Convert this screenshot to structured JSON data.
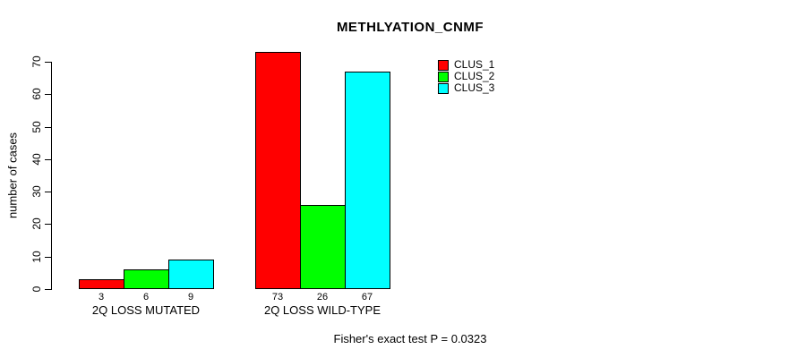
{
  "title": "METHLYATION_CNMF",
  "footer": "Fisher's exact test P = 0.0323",
  "y_axis": {
    "label": "number of cases",
    "ticks": [
      0,
      10,
      20,
      30,
      40,
      50,
      60,
      70
    ]
  },
  "chart_data": {
    "type": "bar",
    "title": "METHLYATION_CNMF",
    "xlabel": "",
    "ylabel": "number of cases",
    "categories": [
      "2Q LOSS MUTATED",
      "2Q LOSS WILD-TYPE"
    ],
    "series": [
      {
        "name": "CLUS_1",
        "color": "#ff0000",
        "values": [
          3,
          73
        ]
      },
      {
        "name": "CLUS_2",
        "color": "#00ff00",
        "values": [
          6,
          26
        ]
      },
      {
        "name": "CLUS_3",
        "color": "#00ffff",
        "values": [
          9,
          67
        ]
      }
    ],
    "bar_value_labels": [
      [
        3,
        6,
        9
      ],
      [
        73,
        26,
        67
      ]
    ],
    "ylim": [
      0,
      70
    ],
    "grid": false,
    "legend_position": "top-right",
    "annotation": "Fisher's exact test P = 0.0323"
  }
}
